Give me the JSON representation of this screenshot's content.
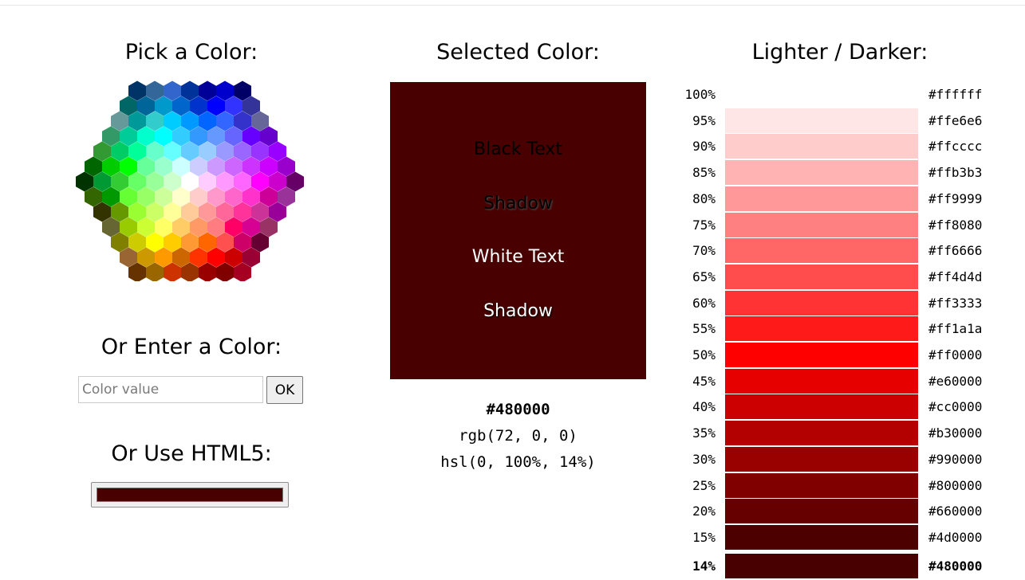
{
  "picker": {
    "title": "Pick a Color:"
  },
  "enter": {
    "title": "Or Enter a Color:",
    "placeholder": "Color value",
    "ok_label": "OK"
  },
  "html5": {
    "title": "Or Use HTML5:",
    "value": "#480000"
  },
  "selected": {
    "title": "Selected Color:",
    "color": "#480000",
    "samples": {
      "black_text": "Black Text",
      "black_shadow": "Shadow",
      "white_text": "White Text",
      "white_shadow": "Shadow"
    },
    "hex": "#480000",
    "rgb": "rgb(72, 0, 0)",
    "hsl": "hsl(0, 100%, 14%)"
  },
  "shades": {
    "title": "Lighter / Darker:",
    "rows": [
      {
        "pct": "100%",
        "hex": "#ffffff"
      },
      {
        "pct": "95%",
        "hex": "#ffe6e6"
      },
      {
        "pct": "90%",
        "hex": "#ffcccc"
      },
      {
        "pct": "85%",
        "hex": "#ffb3b3"
      },
      {
        "pct": "80%",
        "hex": "#ff9999"
      },
      {
        "pct": "75%",
        "hex": "#ff8080"
      },
      {
        "pct": "70%",
        "hex": "#ff6666"
      },
      {
        "pct": "65%",
        "hex": "#ff4d4d"
      },
      {
        "pct": "60%",
        "hex": "#ff3333"
      },
      {
        "pct": "55%",
        "hex": "#ff1a1a"
      },
      {
        "pct": "50%",
        "hex": "#ff0000"
      },
      {
        "pct": "45%",
        "hex": "#e60000"
      },
      {
        "pct": "40%",
        "hex": "#cc0000"
      },
      {
        "pct": "35%",
        "hex": "#b30000"
      },
      {
        "pct": "30%",
        "hex": "#990000"
      },
      {
        "pct": "25%",
        "hex": "#800000"
      },
      {
        "pct": "20%",
        "hex": "#660000"
      },
      {
        "pct": "15%",
        "hex": "#4d0000"
      },
      {
        "pct": "14%",
        "hex": "#480000",
        "current": true
      }
    ]
  },
  "hex_palette": [
    [
      "#003366",
      "#336699",
      "#3366CC",
      "#003399",
      "#000099",
      "#0000CC",
      "#000066"
    ],
    [
      "#006666",
      "#006699",
      "#0099CC",
      "#0066CC",
      "#0033CC",
      "#0000FF",
      "#3333FF",
      "#333399"
    ],
    [
      "#669999",
      "#009999",
      "#33CCCC",
      "#00CCFF",
      "#0099FF",
      "#0066FF",
      "#3366FF",
      "#3333CC",
      "#666699"
    ],
    [
      "#339966",
      "#00CC99",
      "#00FFCC",
      "#00FFFF",
      "#33CCFF",
      "#3399FF",
      "#6699FF",
      "#6666FF",
      "#6600FF",
      "#6600CC"
    ],
    [
      "#339933",
      "#00CC66",
      "#00FF99",
      "#66FFCC",
      "#66FFFF",
      "#66CCFF",
      "#99CCFF",
      "#9999FF",
      "#9966FF",
      "#9933FF",
      "#9900FF"
    ],
    [
      "#006600",
      "#00CC00",
      "#00FF00",
      "#66FF99",
      "#99FFCC",
      "#CCFFFF",
      "#CCCCFF",
      "#CC99FF",
      "#CC66FF",
      "#CC33FF",
      "#CC00FF",
      "#9900CC"
    ],
    [
      "#003300",
      "#009933",
      "#33CC33",
      "#66FF66",
      "#99FF99",
      "#CCFFCC",
      "#FFFFFF",
      "#FFCCFF",
      "#FF99FF",
      "#FF66FF",
      "#FF00FF",
      "#CC00CC",
      "#660066"
    ],
    [
      "#336600",
      "#009900",
      "#66FF33",
      "#99FF66",
      "#CCFF99",
      "#FFFFCC",
      "#FFCCCC",
      "#FF99CC",
      "#FF66CC",
      "#FF33CC",
      "#CC0099",
      "#993399"
    ],
    [
      "#333300",
      "#669900",
      "#99FF33",
      "#CCFF66",
      "#FFFF99",
      "#FFCC99",
      "#FF9999",
      "#FF6699",
      "#FF3399",
      "#CC3399",
      "#990099"
    ],
    [
      "#666633",
      "#99CC00",
      "#CCFF33",
      "#FFFF66",
      "#FFCC66",
      "#FF9966",
      "#FF7C80",
      "#FF0066",
      "#D60093",
      "#993366"
    ],
    [
      "#808000",
      "#CCCC00",
      "#FFFF00",
      "#FFCC00",
      "#FF9933",
      "#FF6600",
      "#FF5050",
      "#CC0066",
      "#660033"
    ],
    [
      "#996633",
      "#CC9900",
      "#FF9900",
      "#CC6600",
      "#FF3300",
      "#FF0000",
      "#CC0000",
      "#990033"
    ],
    [
      "#663300",
      "#996600",
      "#CC3300",
      "#993300",
      "#990000",
      "#800000",
      "#A50021"
    ]
  ]
}
